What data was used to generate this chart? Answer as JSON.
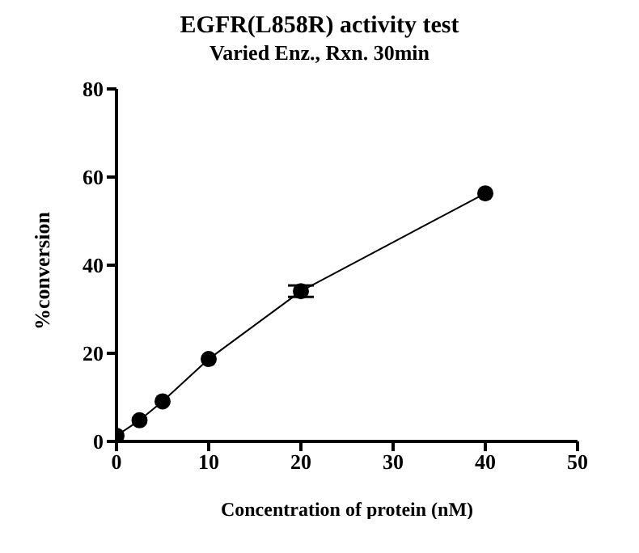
{
  "chart_data": {
    "type": "line",
    "title": "EGFR(L858R) activity test",
    "subtitle": "Varied Enz., Rxn. 30min",
    "xlabel": "Concentration of protein (nM)",
    "ylabel": "%conversion",
    "x": [
      0,
      2.5,
      5,
      10,
      20,
      40
    ],
    "series": [
      {
        "color": "#000000",
        "values": [
          1.3,
          4.8,
          9.1,
          18.7,
          34.1,
          56.3
        ],
        "errors": [
          null,
          null,
          null,
          null,
          1.3,
          null
        ]
      }
    ],
    "xlim": [
      0,
      50
    ],
    "xticks": [
      0,
      10,
      20,
      30,
      40,
      50
    ],
    "ylim": [
      0,
      80
    ],
    "yticks": [
      0,
      20,
      40,
      60,
      80
    ],
    "grid": false,
    "marker": "circle",
    "line_style": "solid"
  }
}
